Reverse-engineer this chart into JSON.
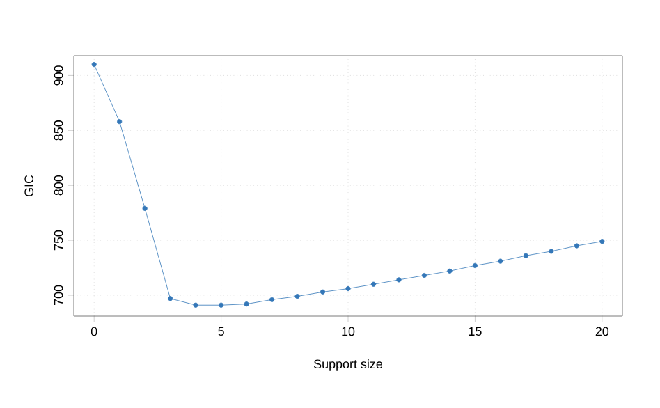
{
  "chart_data": {
    "type": "line",
    "xlabel": "Support size",
    "ylabel": "GIC",
    "x": [
      0,
      1,
      2,
      3,
      4,
      5,
      6,
      7,
      8,
      9,
      10,
      11,
      12,
      13,
      14,
      15,
      16,
      17,
      18,
      19,
      20
    ],
    "series": [
      {
        "color": "#3477b8",
        "values": [
          910,
          858,
          779,
          697,
          691,
          691,
          692,
          696,
          699,
          703,
          706,
          710,
          714,
          718,
          722,
          727,
          731,
          736,
          740,
          745,
          749
        ]
      }
    ],
    "xlim": [
      -0.8,
      20.8
    ],
    "ylim": [
      681,
      918
    ],
    "xticks": [
      0,
      5,
      10,
      15,
      20
    ],
    "yticks": [
      700,
      750,
      800,
      850,
      900
    ],
    "grid": true,
    "marker": "circle",
    "line_style": "solid"
  }
}
